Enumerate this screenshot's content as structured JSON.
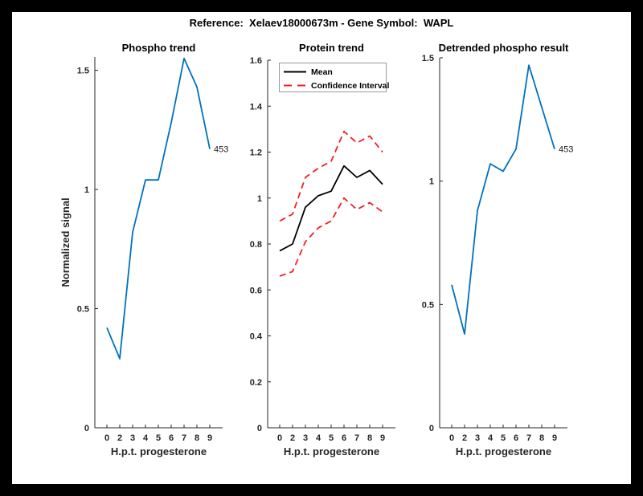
{
  "figure": {
    "title": "Reference:  Xelaev18000673m - Gene Symbol:  WAPL",
    "background_color": "#000000",
    "canvas_color": "#ffffff",
    "axis_color": "#262626"
  },
  "colors": {
    "matlab_blue": "#0072BD",
    "ci_red": "#EE2222",
    "mean_black": "#000000",
    "legend_border": "#999999"
  },
  "chart_data": [
    {
      "id": "phospho-trend",
      "type": "line",
      "title": "Phospho trend",
      "xlabel": "H.p.t. progesterone",
      "ylabel": "Normalized signal",
      "x": [
        0,
        2,
        3,
        4,
        5,
        6,
        7,
        8,
        9
      ],
      "x_tick_labels": [
        "0",
        "2",
        "3",
        "4",
        "5",
        "6",
        "7",
        "8",
        "9"
      ],
      "ylim": [
        0,
        1.556
      ],
      "y_ticks": [
        0,
        0.5,
        1,
        1.5
      ],
      "y_tick_labels": [
        "0",
        "0.5",
        "1",
        "1.5"
      ],
      "grid": false,
      "series": [
        {
          "name": "phospho-trend-line",
          "legend": "Phospho trend",
          "color": "#0072BD",
          "dash": "solid",
          "width": 1.8,
          "values": [
            0.42,
            0.29,
            0.82,
            1.04,
            1.04,
            1.28,
            1.55,
            1.43,
            1.17
          ]
        }
      ],
      "end_label": "453"
    },
    {
      "id": "protein-trend",
      "type": "line",
      "title": "Protein trend",
      "xlabel": "H.p.t. progesterone",
      "ylabel": "",
      "x": [
        0,
        2,
        3,
        4,
        5,
        6,
        7,
        8,
        9
      ],
      "x_tick_labels": [
        "0",
        "2",
        "3",
        "4",
        "5",
        "6",
        "7",
        "8",
        "9"
      ],
      "ylim": [
        0,
        1.6
      ],
      "y_ticks": [
        0,
        0.2,
        0.4,
        0.6,
        0.8,
        1,
        1.2,
        1.4,
        1.6
      ],
      "y_tick_labels": [
        "0",
        "0.2",
        "0.4",
        "0.6",
        "0.8",
        "1",
        "1.2",
        "1.4",
        "1.6"
      ],
      "grid": false,
      "series": [
        {
          "name": "mean-line",
          "legend": "Mean",
          "color": "#000000",
          "dash": "solid",
          "width": 1.8,
          "values": [
            0.77,
            0.8,
            0.96,
            1.01,
            1.03,
            1.14,
            1.09,
            1.12,
            1.06
          ]
        },
        {
          "name": "ci-upper-line",
          "legend": "Confidence Interval",
          "color": "#EE2222",
          "dash": "dashed",
          "width": 1.8,
          "values": [
            0.9,
            0.93,
            1.09,
            1.13,
            1.16,
            1.29,
            1.24,
            1.27,
            1.2
          ]
        },
        {
          "name": "ci-lower-line",
          "legend": "Confidence Interval",
          "color": "#EE2222",
          "dash": "dashed",
          "width": 1.8,
          "values": [
            0.66,
            0.68,
            0.81,
            0.87,
            0.9,
            1.0,
            0.95,
            0.98,
            0.94
          ]
        }
      ],
      "legend_entries": [
        {
          "label": "Mean",
          "color": "#000000",
          "dash": "solid"
        },
        {
          "label": "Confidence Interval",
          "color": "#EE2222",
          "dash": "dashed"
        }
      ],
      "legend_position": "northwest"
    },
    {
      "id": "detrended-phospho-result",
      "type": "line",
      "title": "Detrended phospho result",
      "xlabel": "H.p.t. progesterone",
      "ylabel": "",
      "x": [
        0,
        2,
        3,
        4,
        5,
        6,
        7,
        8,
        9
      ],
      "x_tick_labels": [
        "0",
        "2",
        "3",
        "4",
        "5",
        "6",
        "7",
        "8",
        "9"
      ],
      "ylim": [
        0,
        1.5
      ],
      "y_ticks": [
        0,
        0.5,
        1,
        1.5
      ],
      "y_tick_labels": [
        "0",
        "0.5",
        "1",
        "1.5"
      ],
      "grid": false,
      "series": [
        {
          "name": "detrended-line",
          "legend": "Detrended phospho",
          "color": "#0072BD",
          "dash": "solid",
          "width": 1.8,
          "values": [
            0.58,
            0.38,
            0.88,
            1.07,
            1.04,
            1.13,
            1.47,
            1.3,
            1.13
          ]
        }
      ],
      "end_label": "453"
    }
  ]
}
